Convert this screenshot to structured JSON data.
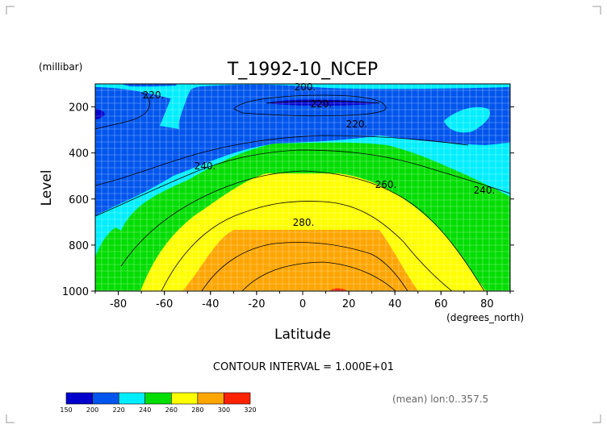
{
  "chart_data": {
    "type": "contour",
    "title": "T_1992-10_NCEP",
    "xlabel": "Latitude",
    "ylabel": "Level",
    "x_unit": "(degrees_north)",
    "y_unit": "(millibar)",
    "xlim": [
      -90,
      90
    ],
    "ylim": [
      1000,
      100
    ],
    "x_ticks": [
      -80,
      -60,
      -40,
      -20,
      0,
      20,
      40,
      60,
      80
    ],
    "y_ticks": [
      200,
      400,
      600,
      800,
      1000
    ],
    "levels": [
      150,
      200,
      220,
      240,
      260,
      280,
      300,
      320
    ],
    "level_colors": [
      "#0000cc",
      "#0055ee",
      "#00eeff",
      "#00dd00",
      "#ffff00",
      "#ffa500",
      "#ff2200"
    ],
    "contour_labels": [
      "220.",
      "200.",
      "220.",
      "220.",
      "240.",
      "260.",
      "240.",
      "280."
    ],
    "footer_interval": "CONTOUR INTERVAL = 1.000E+01",
    "footer_mean": "(mean) lon:0..357.5",
    "grid": true,
    "colorbar_position": "bottom-left"
  }
}
